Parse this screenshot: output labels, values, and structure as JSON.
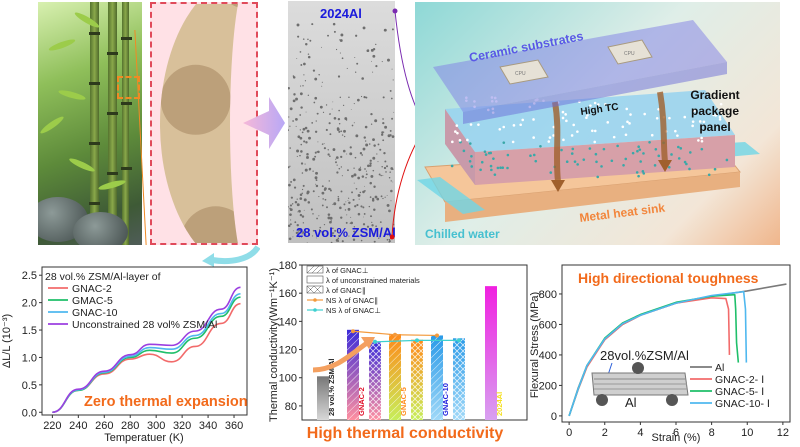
{
  "panels": {
    "micrograph": {
      "top_label": "2024Al",
      "bottom_label": "28 vol.% ZSM/Al"
    },
    "package_diagram": {
      "ceramic_label": "Ceramic substrates",
      "chip_label": "CPU",
      "high_tc_label": "High TC",
      "gradient_label_1": "Gradient",
      "gradient_label_2": "package",
      "gradient_label_3": "panel",
      "heat_sink_label": "Metal heat sink",
      "water_label": "Chilled water"
    }
  },
  "colors": {
    "orange_title": "#f26a1b",
    "blue_label": "#1a1adc",
    "gnac2": "#f26b6b",
    "gnac5": "#1fbf6a",
    "gnac10": "#4fb8ef",
    "unconstrained": "#9b3fe0",
    "al": "#7a7a7a"
  },
  "chart_data": [
    {
      "type": "line",
      "title": "Zero thermal expansion",
      "xlabel": "Temperatuer (K)",
      "ylabel": "ΔL/L (10⁻³)",
      "xlim": [
        212,
        370
      ],
      "ylim": [
        -0.05,
        2.65
      ],
      "xticks": [
        220,
        240,
        260,
        280,
        300,
        320,
        340,
        360
      ],
      "yticks": [
        0.0,
        0.5,
        1.0,
        1.5,
        2.0,
        2.5
      ],
      "xtick_labels": [
        "220",
        "240",
        "260",
        "280",
        "300",
        "320",
        "340",
        "360"
      ],
      "ytick_labels": [
        "0.0",
        "0.5",
        "1.0",
        "1.5",
        "2.0",
        "2.5"
      ],
      "legend_header": "28 vol.% ZSM/Al-layer of",
      "legend_position": "top-left",
      "x": [
        220,
        240,
        260,
        280,
        295,
        312,
        330,
        350,
        365
      ],
      "series": [
        {
          "name": "GNAC-2",
          "color": "#f26b6b",
          "values": [
            0.0,
            0.4,
            0.7,
            0.97,
            1.06,
            0.92,
            1.2,
            1.62,
            1.98
          ]
        },
        {
          "name": "GMAC-5",
          "color": "#1fbf6a",
          "values": [
            0.0,
            0.4,
            0.72,
            1.0,
            1.13,
            1.08,
            1.35,
            1.75,
            2.1
          ]
        },
        {
          "name": "GNAC-10",
          "color": "#4fb8ef",
          "values": [
            0.0,
            0.41,
            0.73,
            1.02,
            1.18,
            1.15,
            1.4,
            1.8,
            2.16
          ]
        },
        {
          "name": "Unconstrained 28 vol% ZSM/Al",
          "color": "#9b3fe0",
          "values": [
            0.0,
            0.42,
            0.75,
            1.05,
            1.24,
            1.22,
            1.48,
            1.88,
            2.28
          ]
        }
      ]
    },
    {
      "type": "bar",
      "title": "High thermal conductivity",
      "ylabel": "Thermal conductivity(Wm⁻¹K⁻¹)",
      "ylim": [
        70,
        180
      ],
      "yticks": [
        80,
        100,
        120,
        140,
        160,
        180
      ],
      "ytick_labels": [
        "80",
        "100",
        "120",
        "140",
        "160",
        "180"
      ],
      "legend": [
        {
          "name": "λ of GNAC⊥",
          "swatch": "hatch"
        },
        {
          "name": "λ of unconstrained materials",
          "swatch": "plain"
        },
        {
          "name": "λ of GNAC∥",
          "swatch": "crosshatch"
        },
        {
          "name": "NS λ of GNAC∥",
          "swatch": "line",
          "color": "#f39a3c"
        },
        {
          "name": "NS λ of GNAC⊥",
          "swatch": "line",
          "color": "#3fd0d0"
        }
      ],
      "bars": [
        {
          "label": "28 vol.% ZSM/Al",
          "value": 101,
          "kind": "plain",
          "top": "#777777",
          "bottom": "#d8d8d8",
          "label_color": "#222222"
        },
        {
          "label": "GNAC-2",
          "value": 134,
          "kind": "hatch",
          "top": "#3b2bd9",
          "bottom": "#ff8fa0",
          "label_color": "#e0102a"
        },
        {
          "label": "",
          "value": 125,
          "kind": "crosshatch",
          "top": "#3b2bd9",
          "bottom": "#ff8fa0",
          "label_color": ""
        },
        {
          "label": "GNAC-5",
          "value": 131,
          "kind": "hatch",
          "top": "#ff8a1a",
          "bottom": "#c7ee5a",
          "label_color": "#ff8a1a"
        },
        {
          "label": "",
          "value": 127,
          "kind": "crosshatch",
          "top": "#ff8a1a",
          "bottom": "#c7ee5a",
          "label_color": ""
        },
        {
          "label": "GNAC-10",
          "value": 130,
          "kind": "hatch",
          "top": "#2a9ae8",
          "bottom": "#9fd8f8",
          "label_color": "#1a1adc"
        },
        {
          "label": "",
          "value": 128,
          "kind": "crosshatch",
          "top": "#2a9ae8",
          "bottom": "#9fd8f8",
          "label_color": ""
        },
        {
          "label": "2024Al",
          "value": 165,
          "kind": "plain",
          "top": "#f020e0",
          "bottom": "#d8a0f0",
          "label_color": "#f5e020"
        }
      ],
      "ns_parallel": {
        "name": "NS λ of GNAC∥",
        "values": [
          133,
          130.5,
          130
        ]
      },
      "ns_perp": {
        "name": "NS λ of GNAC⊥",
        "values": [
          125.5,
          126.5,
          126.5
        ]
      }
    },
    {
      "type": "line",
      "title": "High directional toughness",
      "xlabel": "Strain (%)",
      "ylabel": "Flexural Stress (MPa)",
      "xlim": [
        -0.4,
        12.4
      ],
      "ylim": [
        -40,
        990
      ],
      "xticks": [
        0,
        2,
        4,
        6,
        8,
        10,
        12
      ],
      "yticks": [
        0,
        200,
        400,
        600,
        800
      ],
      "xtick_labels": [
        "0",
        "2",
        "4",
        "6",
        "8",
        "10",
        "12"
      ],
      "ytick_labels": [
        "0",
        "200",
        "400",
        "600",
        "800"
      ],
      "inset_label_top": "28vol.%ZSM/Al",
      "inset_label_bottom": "Al",
      "legend_position": "bottom-right",
      "series": [
        {
          "name": "Al",
          "color": "#7a7a7a",
          "x": [
            0,
            0.5,
            1,
            2,
            3,
            4,
            6,
            8,
            10,
            12.2
          ],
          "values": [
            0,
            180,
            330,
            500,
            600,
            660,
            740,
            785,
            820,
            865
          ]
        },
        {
          "name": "GNAC-2- Ⅰ",
          "color": "#f26b6b",
          "x": [
            0,
            0.5,
            1,
            2,
            3,
            4,
            6,
            8,
            8.8,
            8.95,
            9.0
          ],
          "values": [
            0,
            170,
            320,
            500,
            600,
            660,
            740,
            775,
            770,
            700,
            400
          ]
        },
        {
          "name": "GNAC-5- Ⅰ",
          "color": "#1fbf6a",
          "x": [
            0,
            0.5,
            1,
            2,
            3,
            4,
            6,
            8,
            9.3,
            9.35,
            9.4,
            9.5
          ],
          "values": [
            0,
            175,
            330,
            510,
            610,
            665,
            745,
            785,
            795,
            700,
            480,
            350
          ]
        },
        {
          "name": "GNAC-10- Ⅰ",
          "color": "#4fb8ef",
          "x": [
            0,
            0.5,
            1,
            2,
            3,
            4,
            6,
            8,
            9.8,
            9.9,
            9.95
          ],
          "values": [
            0,
            175,
            330,
            505,
            605,
            660,
            740,
            790,
            815,
            700,
            350
          ]
        }
      ]
    }
  ]
}
